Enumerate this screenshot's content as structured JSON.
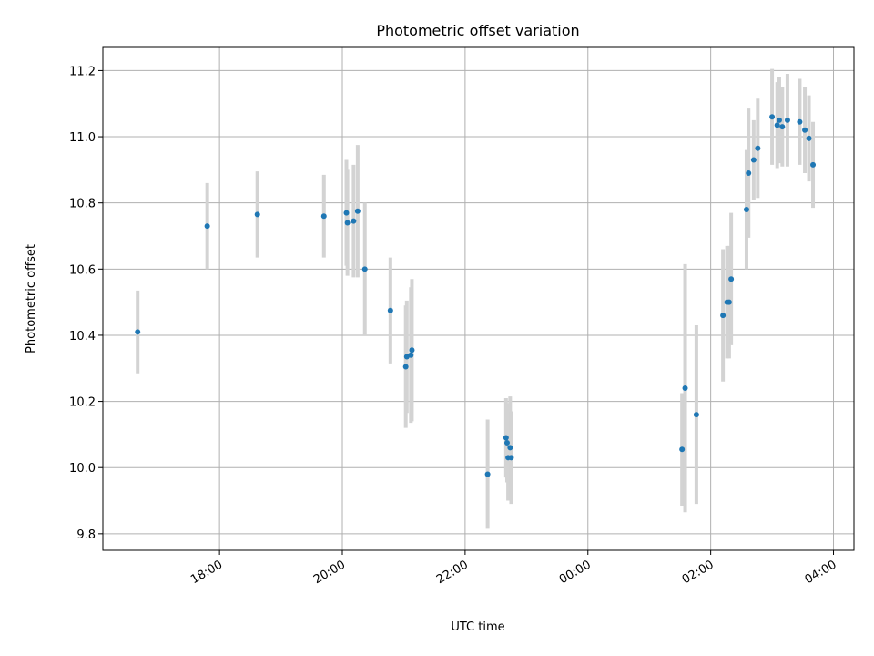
{
  "chart_data": {
    "type": "scatter",
    "title": "Photometric offset variation",
    "xlabel": "UTC time",
    "ylabel": "Photometric offset",
    "ylim": [
      9.75,
      11.27
    ],
    "xlim": [
      "16:06",
      "04:20"
    ],
    "grid": true,
    "x_ticks": [
      "18:00",
      "20:00",
      "22:00",
      "00:00",
      "02:00",
      "04:00"
    ],
    "y_ticks": [
      "9.8",
      "10.0",
      "10.2",
      "10.4",
      "10.6",
      "10.8",
      "11.0",
      "11.2"
    ],
    "series": [
      {
        "marker": "point",
        "error_bars": true,
        "points": [
          {
            "t": "16:40",
            "y": 10.41,
            "yerr": 0.125
          },
          {
            "t": "17:48",
            "y": 10.73,
            "yerr": 0.13
          },
          {
            "t": "18:37",
            "y": 10.765,
            "yerr": 0.13
          },
          {
            "t": "19:42",
            "y": 10.76,
            "yerr": 0.125
          },
          {
            "t": "20:04",
            "y": 10.77,
            "yerr": 0.16
          },
          {
            "t": "20:05",
            "y": 10.74,
            "yerr": 0.16
          },
          {
            "t": "20:11",
            "y": 10.745,
            "yerr": 0.17
          },
          {
            "t": "20:15",
            "y": 10.775,
            "yerr": 0.2
          },
          {
            "t": "20:22",
            "y": 10.6,
            "yerr": 0.2
          },
          {
            "t": "20:47",
            "y": 10.475,
            "yerr": 0.16
          },
          {
            "t": "21:02",
            "y": 10.305,
            "yerr": 0.185
          },
          {
            "t": "21:03",
            "y": 10.335,
            "yerr": 0.17
          },
          {
            "t": "21:07",
            "y": 10.34,
            "yerr": 0.205
          },
          {
            "t": "21:08",
            "y": 10.355,
            "yerr": 0.215
          },
          {
            "t": "22:22",
            "y": 9.98,
            "yerr": 0.165
          },
          {
            "t": "22:40",
            "y": 10.09,
            "yerr": 0.12
          },
          {
            "t": "22:41",
            "y": 10.075,
            "yerr": 0.12
          },
          {
            "t": "22:42",
            "y": 10.03,
            "yerr": 0.13
          },
          {
            "t": "22:44",
            "y": 10.06,
            "yerr": 0.155
          },
          {
            "t": "22:45",
            "y": 10.03,
            "yerr": 0.14
          },
          {
            "t": "01:32",
            "y": 10.055,
            "yerr": 0.17
          },
          {
            "t": "01:35",
            "y": 10.24,
            "yerr": 0.375
          },
          {
            "t": "01:46",
            "y": 10.16,
            "yerr": 0.27
          },
          {
            "t": "02:12",
            "y": 10.46,
            "yerr": 0.2
          },
          {
            "t": "02:16",
            "y": 10.5,
            "yerr": 0.17
          },
          {
            "t": "02:18",
            "y": 10.5,
            "yerr": 0.17
          },
          {
            "t": "02:20",
            "y": 10.57,
            "yerr": 0.2
          },
          {
            "t": "02:35",
            "y": 10.78,
            "yerr": 0.18
          },
          {
            "t": "02:37",
            "y": 10.89,
            "yerr": 0.195
          },
          {
            "t": "02:42",
            "y": 10.93,
            "yerr": 0.12
          },
          {
            "t": "02:46",
            "y": 10.965,
            "yerr": 0.15
          },
          {
            "t": "03:00",
            "y": 11.06,
            "yerr": 0.145
          },
          {
            "t": "03:05",
            "y": 11.035,
            "yerr": 0.13
          },
          {
            "t": "03:07",
            "y": 11.05,
            "yerr": 0.13
          },
          {
            "t": "03:10",
            "y": 11.03,
            "yerr": 0.12
          },
          {
            "t": "03:15",
            "y": 11.05,
            "yerr": 0.14
          },
          {
            "t": "03:27",
            "y": 11.045,
            "yerr": 0.13
          },
          {
            "t": "03:32",
            "y": 11.02,
            "yerr": 0.13
          },
          {
            "t": "03:36",
            "y": 10.995,
            "yerr": 0.13
          },
          {
            "t": "03:40",
            "y": 10.915,
            "yerr": 0.13
          }
        ]
      }
    ],
    "colors": {
      "point": "#1f77b4",
      "error_bar": "#d3d3d3",
      "grid": "#b0b0b0"
    }
  }
}
